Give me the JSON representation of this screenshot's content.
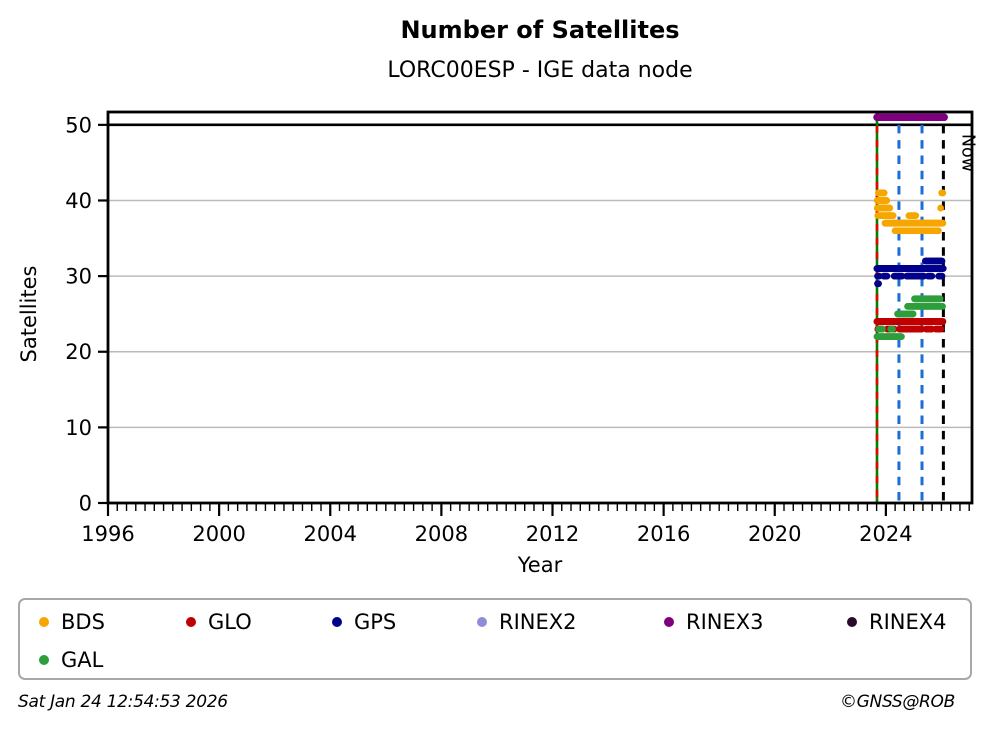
{
  "footer": {
    "timestamp": "Sat Jan 24 12:54:53 2026",
    "credit": "©GNSS@ROB"
  },
  "legend": {
    "items": [
      {
        "label": "BDS",
        "color": "#F7A600"
      },
      {
        "label": "GLO",
        "color": "#C00000"
      },
      {
        "label": "GPS",
        "color": "#00008B"
      },
      {
        "label": "RINEX2",
        "color": "#8E8ED8"
      },
      {
        "label": "RINEX3",
        "color": "#7F007F"
      },
      {
        "label": "RINEX4",
        "color": "#290A29"
      },
      {
        "label": "GAL",
        "color": "#2E9E3C"
      }
    ]
  },
  "chart_data": {
    "type": "scatter",
    "title": "Number of Satellites",
    "subtitle": "LORC00ESP - IGE data node",
    "xlabel": "Year",
    "ylabel": "Satellites",
    "now_label": "Now",
    "xlim": [
      1996,
      2027.1
    ],
    "ylim": [
      0,
      51.7
    ],
    "x_major_ticks": [
      1996,
      2000,
      2004,
      2008,
      2012,
      2016,
      2020,
      2024
    ],
    "x_minor_step": 0.33333,
    "y_ticks": [
      0,
      10,
      20,
      30,
      40,
      50
    ],
    "gridlines_y": [
      10,
      20,
      30,
      40
    ],
    "grid_color": "#bbbbbb",
    "hline": {
      "y": 50,
      "color": "#000000"
    },
    "vlines": [
      {
        "x": 2023.68,
        "style": "solid",
        "color": "#008000",
        "overlay_dash_color": "#E10600",
        "full_height": true,
        "name": "data-start"
      },
      {
        "x": 2024.47,
        "style": "dashed",
        "color": "#1C6ED2"
      },
      {
        "x": 2025.3,
        "style": "dashed",
        "color": "#1C6ED2"
      },
      {
        "x": 2026.07,
        "style": "dashed",
        "color": "#000000",
        "label": "Now"
      }
    ],
    "series": [
      {
        "name": "BDS",
        "color": "#F7A600",
        "marker_r": 3.4,
        "segments": [
          [
            41,
            2023.73,
            2023.94,
            0.035
          ],
          [
            40,
            2023.69,
            2024.04,
            0.018
          ],
          [
            39,
            2023.69,
            2024.15,
            0.016
          ],
          [
            38,
            2023.71,
            2024.28,
            0.022
          ],
          [
            38,
            2024.83,
            2025.1,
            0.035
          ],
          [
            37,
            2023.97,
            2026.05,
            0.02
          ],
          [
            36,
            2024.33,
            2025.93,
            0.06
          ],
          [
            41,
            2026.01,
            2026.05,
            0.04
          ],
          [
            39,
            2025.97,
            2026.01,
            0.05
          ]
        ]
      },
      {
        "name": "GLO",
        "color": "#C00000",
        "marker_r": 3.4,
        "lw": 7,
        "segments": [
          [
            24,
            2023.68,
            2026.05,
            0
          ],
          [
            23,
            2023.71,
            2023.9,
            0.04
          ],
          [
            23,
            2024.05,
            2024.32,
            0.05
          ],
          [
            23,
            2024.5,
            2025.3,
            0.028
          ],
          [
            23,
            2025.45,
            2025.66,
            0.05
          ],
          [
            23,
            2025.8,
            2026.0,
            0.045
          ]
        ]
      },
      {
        "name": "GPS",
        "color": "#00008B",
        "marker_r": 3.4,
        "lw": 7,
        "segments": [
          [
            31,
            2023.68,
            2026.06,
            0
          ],
          [
            30,
            2023.7,
            2023.78,
            0.03
          ],
          [
            30,
            2023.92,
            2024.06,
            0.04
          ],
          [
            30,
            2024.3,
            2024.6,
            0.035
          ],
          [
            30,
            2024.75,
            2025.38,
            0.022
          ],
          [
            30,
            2025.52,
            2025.66,
            0.045
          ],
          [
            30,
            2025.9,
            2026.03,
            0.04
          ],
          [
            29,
            2023.7,
            2023.74,
            0.035
          ],
          [
            32,
            2025.42,
            2026.04,
            0.03
          ]
        ]
      },
      {
        "name": "RINEX2",
        "color": "#8E8ED8",
        "marker_r": 3.4,
        "segments": []
      },
      {
        "name": "RINEX3",
        "color": "#7F007F",
        "marker_r": 3.4,
        "lw": 7.5,
        "segments": [
          [
            51,
            2023.68,
            2026.1,
            0
          ]
        ]
      },
      {
        "name": "RINEX4",
        "color": "#290A29",
        "marker_r": 3.4,
        "segments": []
      },
      {
        "name": "GAL",
        "color": "#2E9E3C",
        "marker_r": 3.4,
        "segments": [
          [
            22,
            2023.68,
            2024.56,
            0.022
          ],
          [
            23,
            2023.74,
            2023.88,
            0.045
          ],
          [
            23,
            2024.18,
            2024.26,
            0.06
          ],
          [
            25,
            2024.42,
            2024.98,
            0.02
          ],
          [
            26,
            2024.78,
            2026.04,
            0.028
          ],
          [
            27,
            2025.03,
            2025.96,
            0.022
          ]
        ]
      }
    ]
  }
}
